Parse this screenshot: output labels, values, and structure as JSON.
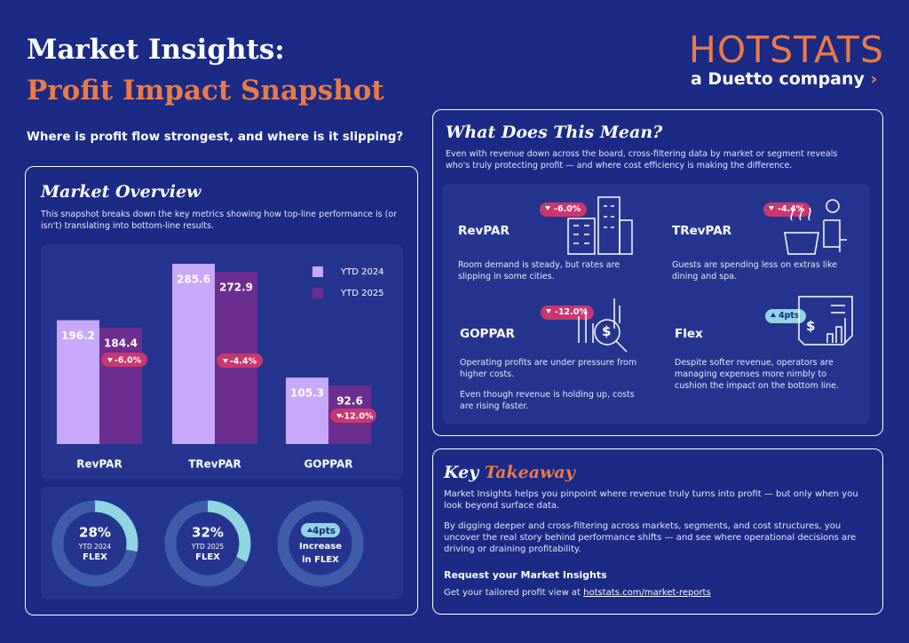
{
  "header": {
    "title": "Market Insights:",
    "subtitle": "Profit Impact Snapshot",
    "question": "Where is profit flow strongest, and where is it slipping?",
    "logo": "HOTSTATS",
    "logo_tagline": "a Duetto company"
  },
  "market_overview": {
    "title": "Market Overview",
    "description": "This snapshot breaks down the key metrics showing how top-line performance is (or isn't) translating into bottom-line results."
  },
  "chart_data": {
    "type": "bar",
    "categories": [
      "RevPAR",
      "TRevPAR",
      "GOPPAR"
    ],
    "series": [
      {
        "name": "YTD 2024",
        "color": "#c8a8f8",
        "values": [
          196.2,
          285.6,
          105.3
        ]
      },
      {
        "name": "YTD 2025",
        "color": "#6b2d8e",
        "values": [
          184.4,
          272.9,
          92.6
        ]
      }
    ],
    "annotations": [
      "-6.0%",
      "-4.4%",
      "-12.0%"
    ]
  },
  "flex": {
    "donuts": [
      {
        "value": 28,
        "value_label": "28%",
        "label": "YTD 2024",
        "sub": "FLEX"
      },
      {
        "value": 32,
        "value_label": "32%",
        "label": "YTD 2025",
        "sub": "FLEX"
      }
    ],
    "change": {
      "value_label": "4pts",
      "label": "Increase",
      "sub": "in FLEX"
    }
  },
  "meaning": {
    "title": "What Does This Mean?",
    "description": "Even with revenue down across the board, cross-filtering data by market or segment reveals who's truly protecting profit — and where cost efficiency is making the difference.",
    "items": [
      {
        "metric": "RevPAR",
        "change": "-6.0%",
        "text": [
          "Room demand is steady, but rates are slipping in some cities."
        ]
      },
      {
        "metric": "TRevPAR",
        "change": "-4.4%",
        "text": [
          "Guests are spending less on extras like dining and spa."
        ]
      },
      {
        "metric": "GOPPAR",
        "change": "-12.0%",
        "text": [
          "Operating profits are under pressure from higher costs.",
          "Even though revenue is holding up, costs are rising faster."
        ]
      },
      {
        "metric": "Flex",
        "change": "4pts",
        "text": [
          "Despite softer revenue, operators are managing expenses more nimbly to cushion the impact on the bottom line."
        ]
      }
    ]
  },
  "takeaway": {
    "title_a": "Key",
    "title_b": "Takeaway",
    "paragraphs": [
      "Market Insights helps you pinpoint where revenue truly turns into profit — but only when you look beyond surface data.",
      "By digging deeper and cross-filtering across markets, segments, and cost structures, you uncover the real story behind performance shifts — and see where operational decisions are driving or draining profitability."
    ],
    "request": "Request your Market Insights",
    "cta": "Get your tailored profit view at",
    "link": "hotstats.com/market-reports"
  }
}
